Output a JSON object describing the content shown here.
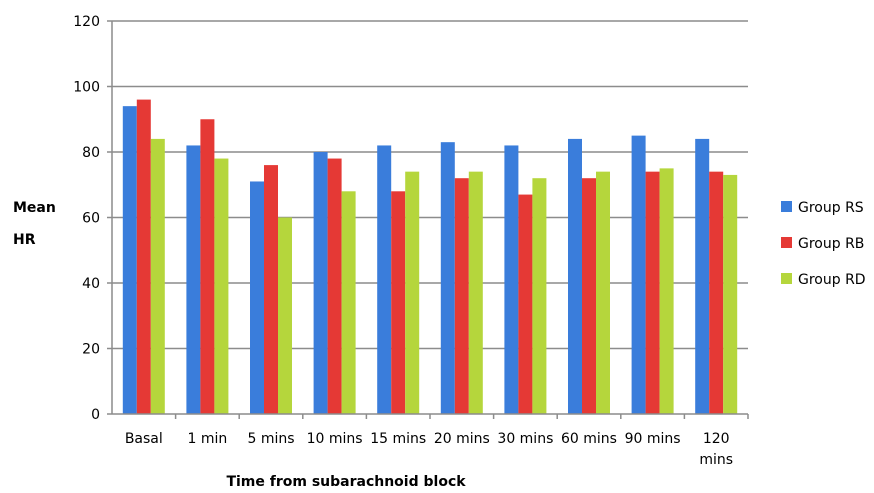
{
  "chart_data": {
    "type": "bar",
    "title": "",
    "xlabel": "Time from  subarachnoid block",
    "ylabel_lines": [
      "Mean",
      "HR"
    ],
    "ylim": [
      0,
      120
    ],
    "yticks": [
      0,
      20,
      40,
      60,
      80,
      100,
      120
    ],
    "ytick_labels": [
      "0",
      "20",
      "40",
      "60",
      "80",
      "100",
      "120"
    ],
    "grid": true,
    "legend_position": "right",
    "categories": [
      "Basal",
      "1 min",
      "5 mins",
      "10 mins",
      "15 mins",
      "20 mins",
      "30 mins",
      "60 mins",
      "90 mins",
      "120 mins"
    ],
    "category_label_lines": [
      [
        "Basal"
      ],
      [
        "1 min"
      ],
      [
        "5 mins"
      ],
      [
        "10 mins"
      ],
      [
        "15 mins"
      ],
      [
        "20 mins"
      ],
      [
        "30 mins"
      ],
      [
        "60 mins"
      ],
      [
        "90 mins"
      ],
      [
        "120",
        "mins"
      ]
    ],
    "series": [
      {
        "name": "Group RS",
        "color": "#3a7ddb",
        "values": [
          94,
          82,
          71,
          80,
          82,
          83,
          82,
          84,
          85,
          84
        ]
      },
      {
        "name": "Group RB",
        "color": "#e53935",
        "values": [
          96,
          90,
          76,
          78,
          68,
          72,
          67,
          72,
          74,
          74
        ]
      },
      {
        "name": "Group RD",
        "color": "#b5d63c",
        "values": [
          84,
          78,
          60,
          68,
          74,
          74,
          72,
          74,
          75,
          73
        ]
      }
    ]
  }
}
